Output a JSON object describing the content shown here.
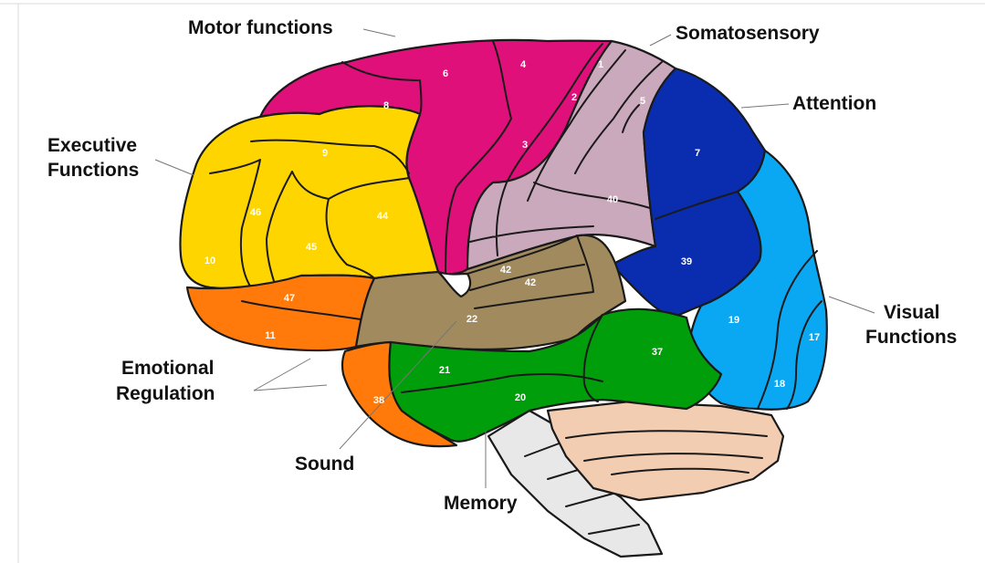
{
  "colors": {
    "motor": "#e0107a",
    "somatosensory": "#cba9bd",
    "attention": "#0a2db0",
    "visual": "#0aa8f2",
    "executive": "#ffd500",
    "emotional": "#ff7a0a",
    "sound": "#a08a5e",
    "memory": "#009e0a",
    "cerebellum": "#f2cdb2",
    "brainstem": "#e8e8e8"
  },
  "areas": {
    "a1": "1",
    "a2": "2",
    "a3": "3",
    "a4": "4",
    "a5": "5",
    "a6": "6",
    "a7": "7",
    "a8": "8",
    "a9": "9",
    "a10": "10",
    "a11": "11",
    "a17": "17",
    "a18": "18",
    "a19": "19",
    "a20": "20",
    "a21": "21",
    "a22": "22",
    "a37": "37",
    "a38": "38",
    "a39": "39",
    "a40": "40",
    "a42a": "42",
    "a42b": "42",
    "a44": "44",
    "a45": "45",
    "a46": "46",
    "a47": "47"
  },
  "functions": {
    "motor": "Motor functions",
    "somatosensory": "Somatosensory",
    "attention": "Attention",
    "executive_1": "Executive",
    "executive_2": "Functions",
    "emotional_1": "Emotional",
    "emotional_2": "Regulation",
    "sound": "Sound",
    "memory": "Memory",
    "visual_1": "Visual",
    "visual_2": "Functions"
  }
}
